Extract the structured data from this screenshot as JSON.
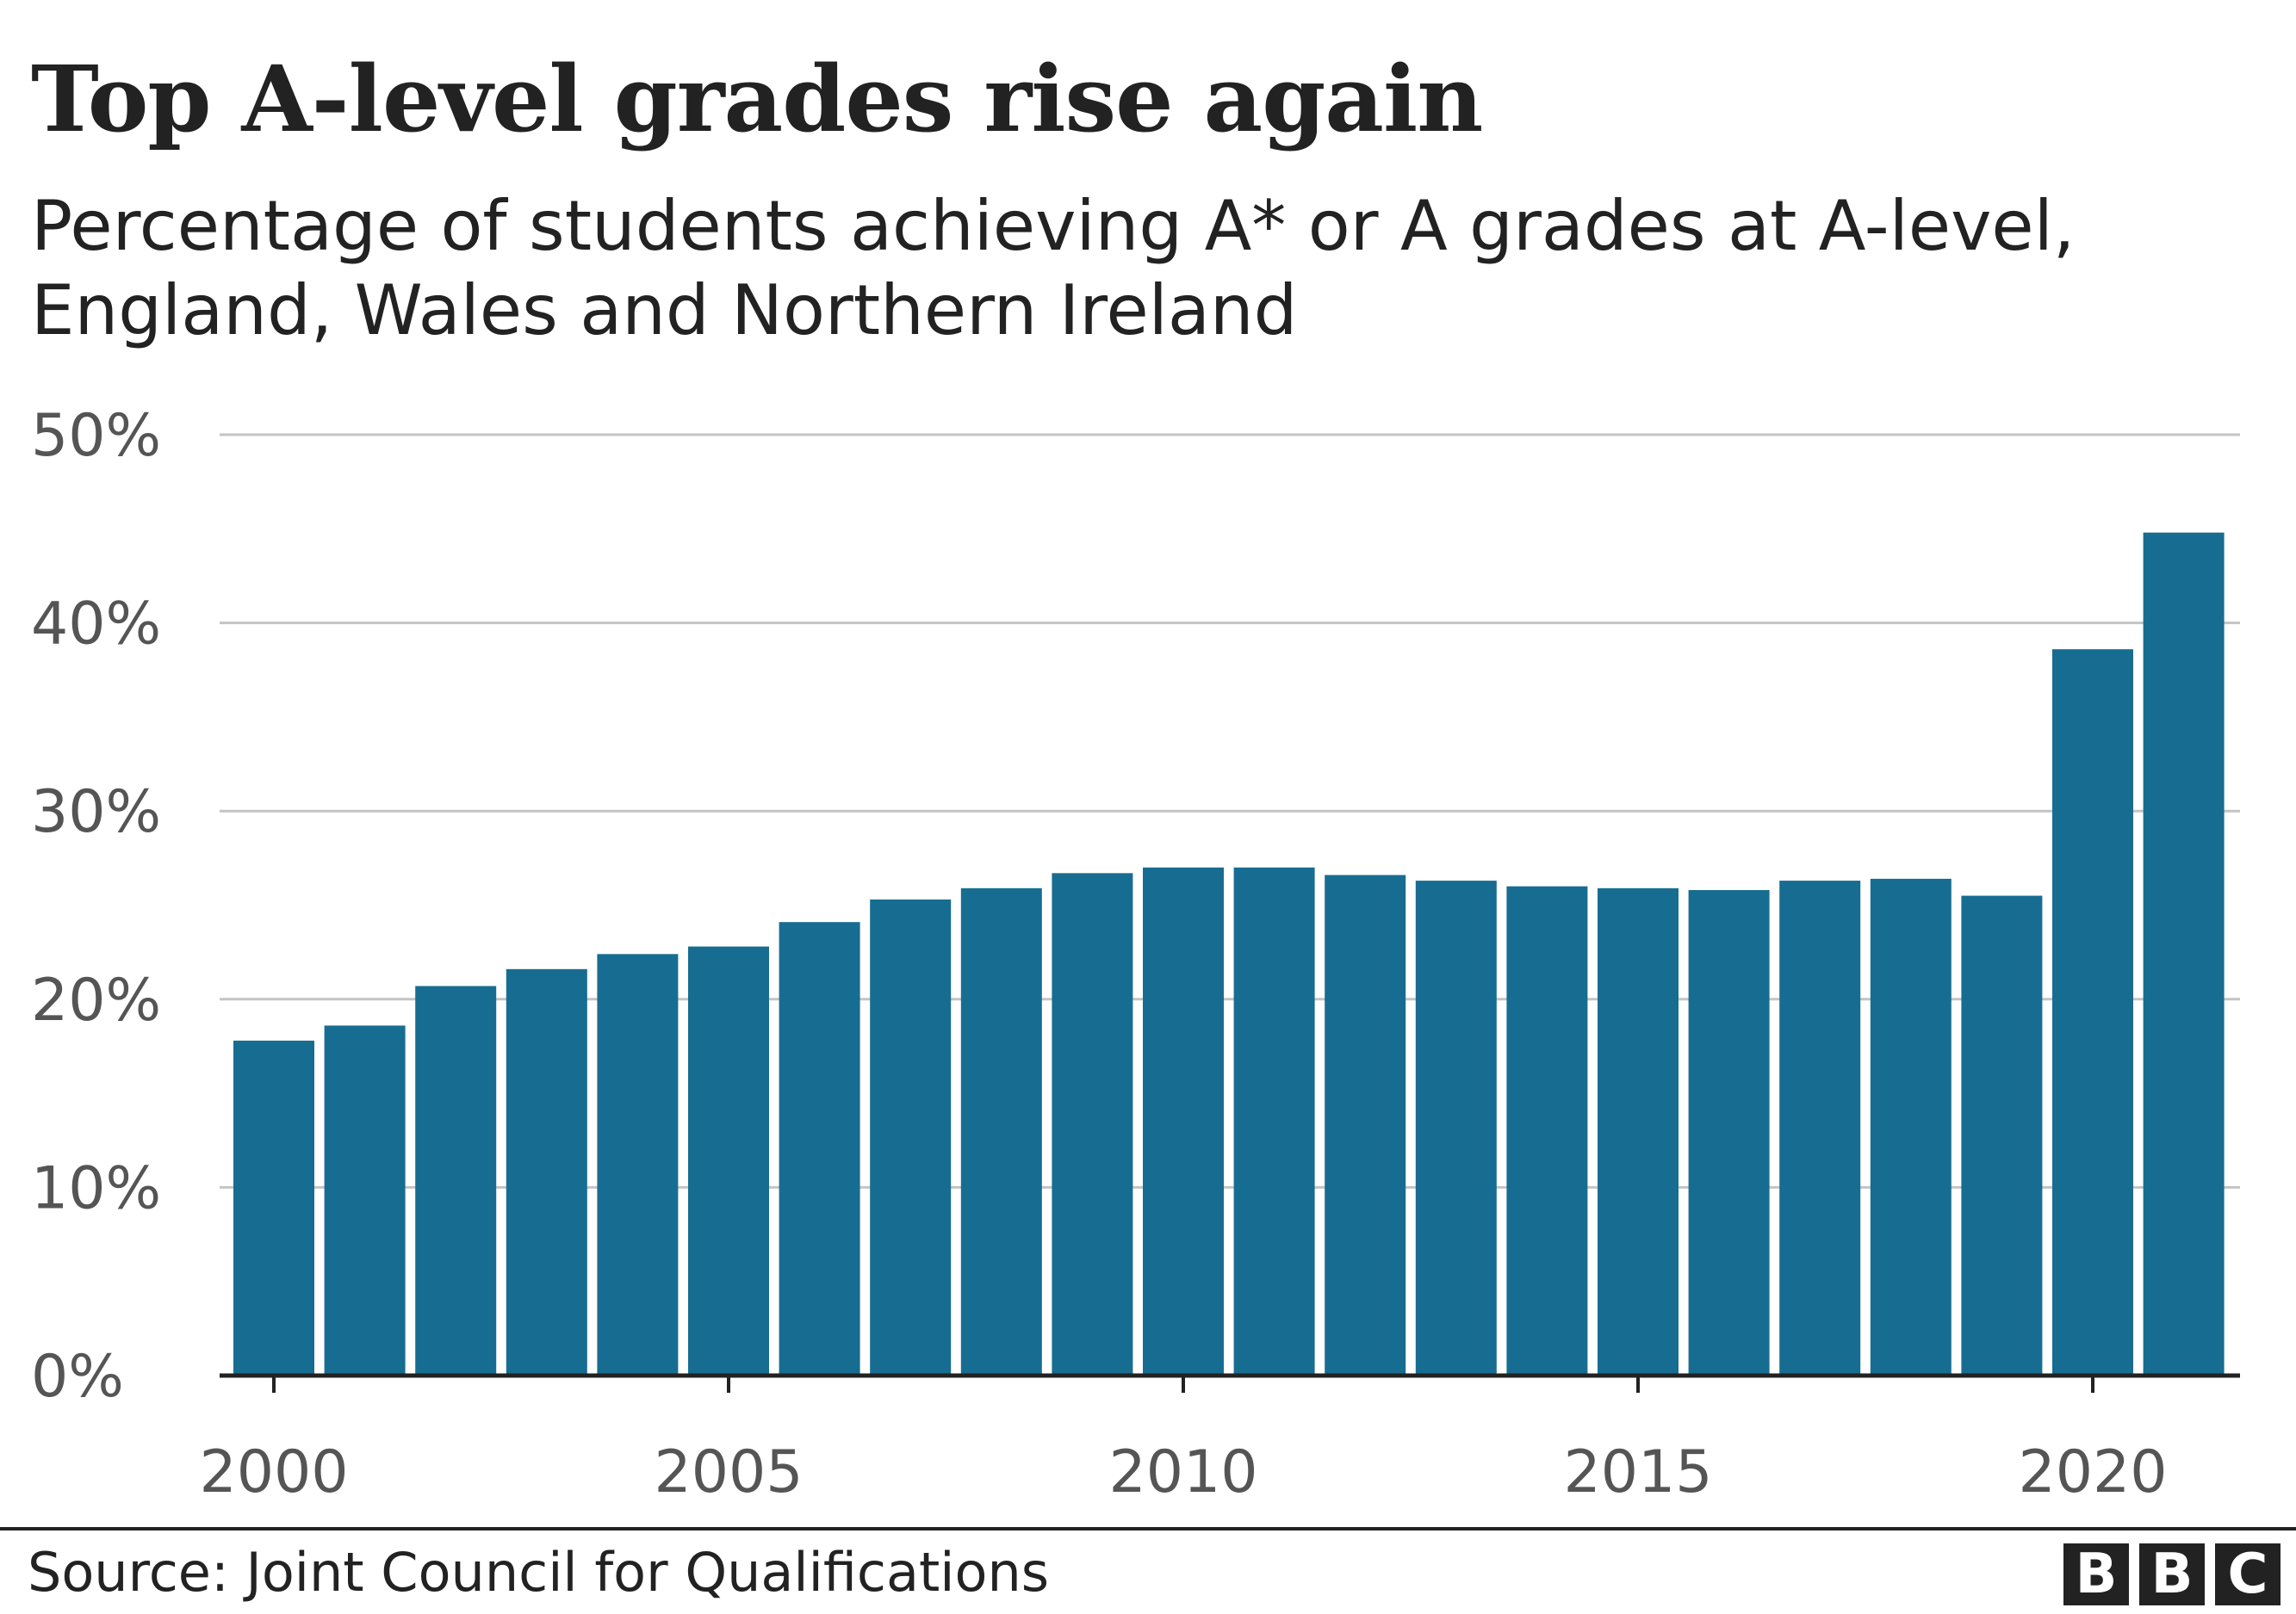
{
  "chart_data": {
    "type": "bar",
    "title": "Top A-level grades rise again",
    "subtitle": "Percentage of students achieving A* or A grades at A-level, England, Wales and Northern Ireland",
    "xlabel": "",
    "ylabel": "",
    "categories": [
      2000,
      2001,
      2002,
      2003,
      2004,
      2005,
      2006,
      2007,
      2008,
      2009,
      2010,
      2011,
      2012,
      2013,
      2014,
      2015,
      2016,
      2017,
      2018,
      2019,
      2020,
      2021
    ],
    "values": [
      17.8,
      18.6,
      20.7,
      21.6,
      22.4,
      22.8,
      24.1,
      25.3,
      25.9,
      26.7,
      27.0,
      27.0,
      26.6,
      26.3,
      26.0,
      25.9,
      25.8,
      26.3,
      26.4,
      25.5,
      38.6,
      44.8
    ],
    "ylim": [
      0,
      50
    ],
    "yticks": [
      "0%",
      "10%",
      "20%",
      "30%",
      "40%",
      "50%"
    ],
    "xticks": [
      "2000",
      "2005",
      "2010",
      "2015",
      "2020"
    ],
    "grid": true,
    "bar_color": "#176d91"
  },
  "footer": {
    "source": "Source: Joint Council for Qualifications",
    "logo": "BBC",
    "logo_letters": [
      "B",
      "B",
      "C"
    ]
  }
}
